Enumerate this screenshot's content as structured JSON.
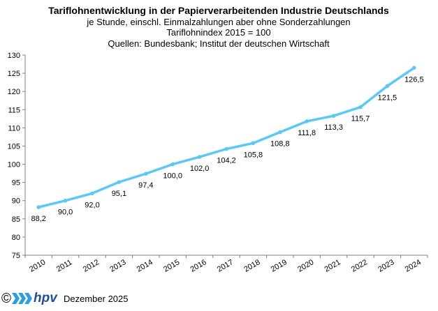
{
  "chart_data": {
    "type": "line",
    "title": "Tariflohnentwicklung in der Papierverarbeitenden Industrie Deutschlands",
    "subtitle_lines": [
      "je Stunde, einschl. Einmalzahlungen  aber ohne Sonderzahlungen",
      "Tariflohnindex 2015 = 100",
      "Quellen: Bundesbank; Institut der deutschen Wirtschaft"
    ],
    "xlabel": "",
    "ylabel": "",
    "ylim": [
      75,
      130
    ],
    "yticks": [
      "75",
      "80",
      "85",
      "90",
      "95",
      "100",
      "105",
      "110",
      "115",
      "120",
      "125",
      "130"
    ],
    "categories": [
      "2010",
      "2011",
      "2012",
      "2013",
      "2014",
      "2015",
      "2016",
      "2017",
      "2018",
      "2019",
      "2020",
      "2021",
      "2022",
      "2023",
      "2024"
    ],
    "x": [
      2010.0,
      2011.0,
      2012.0,
      2013.0,
      2014.0,
      2015.0,
      2016.0,
      2017.0,
      2018.0,
      2019.0,
      2020.0,
      2021.0,
      2022.0,
      2023.0,
      2024.0
    ],
    "series": [
      {
        "name": "Tariflohnindex",
        "values": [
          88.2,
          90.0,
          92.0,
          95.1,
          97.4,
          100.0,
          102.0,
          104.2,
          105.8,
          108.8,
          111.8,
          113.3,
          115.7,
          121.5,
          126.5
        ],
        "labels": [
          "88,2",
          "90,0",
          "92,0",
          "95,1",
          "97,4",
          "100,0",
          "102,0",
          "104,2",
          "105,8",
          "108,8",
          "111,8",
          "113,3",
          "115,7",
          "121,5",
          "126,5"
        ],
        "color": "#5BC8F5"
      }
    ],
    "grid": false
  },
  "footer": {
    "copyright_symbol": "©",
    "logo_text": "hpv",
    "date": "Dezember 2025"
  },
  "colors": {
    "line": "#5BC8F5",
    "logo_arrows": "#2F9FDB",
    "logo_text": "#1E4F91",
    "axis": "#808080"
  }
}
